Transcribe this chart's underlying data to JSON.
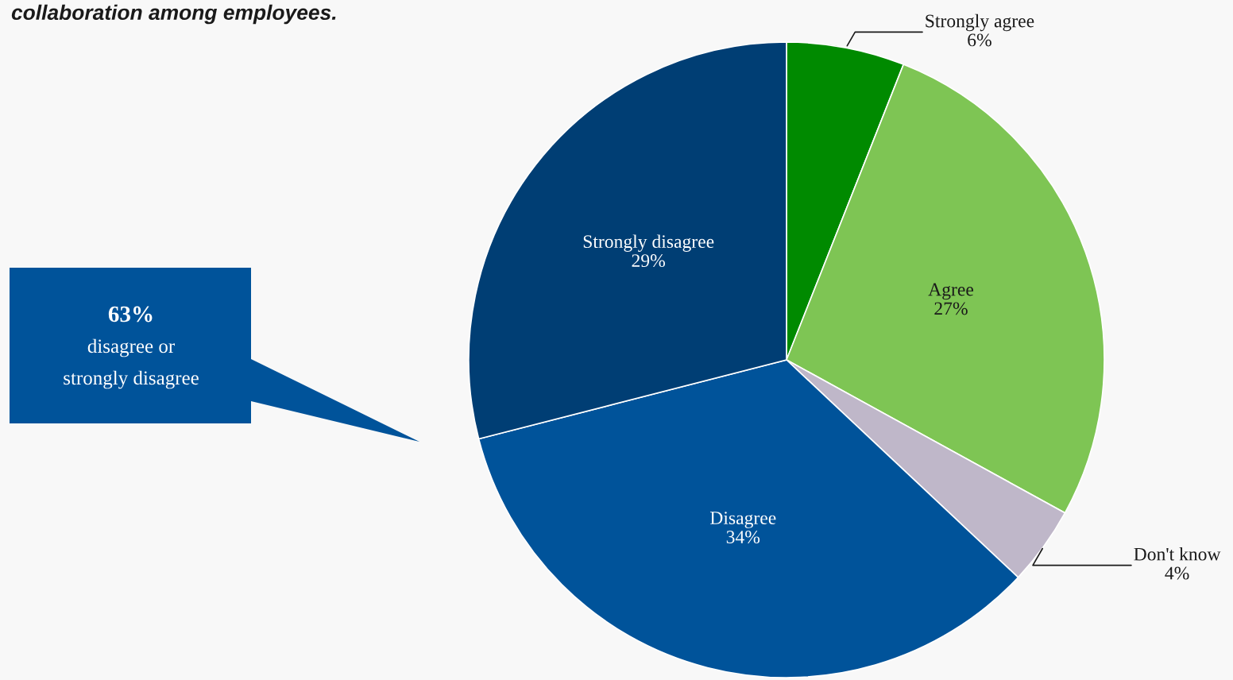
{
  "chart_data": {
    "type": "pie",
    "title": "collaboration among employees.",
    "categories": [
      "Strongly agree",
      "Agree",
      "Don't know",
      "Disagree",
      "Strongly disagree"
    ],
    "values": [
      6,
      27,
      4,
      34,
      29
    ],
    "colors": [
      "#008a00",
      "#7ec554",
      "#bfb7c9",
      "#00539a",
      "#003e74"
    ],
    "value_labels": [
      "6%",
      "27%",
      "4%",
      "34%",
      "29%"
    ],
    "annotations": [
      "63%\ndisagree or\nstrongly disagree"
    ]
  }
}
